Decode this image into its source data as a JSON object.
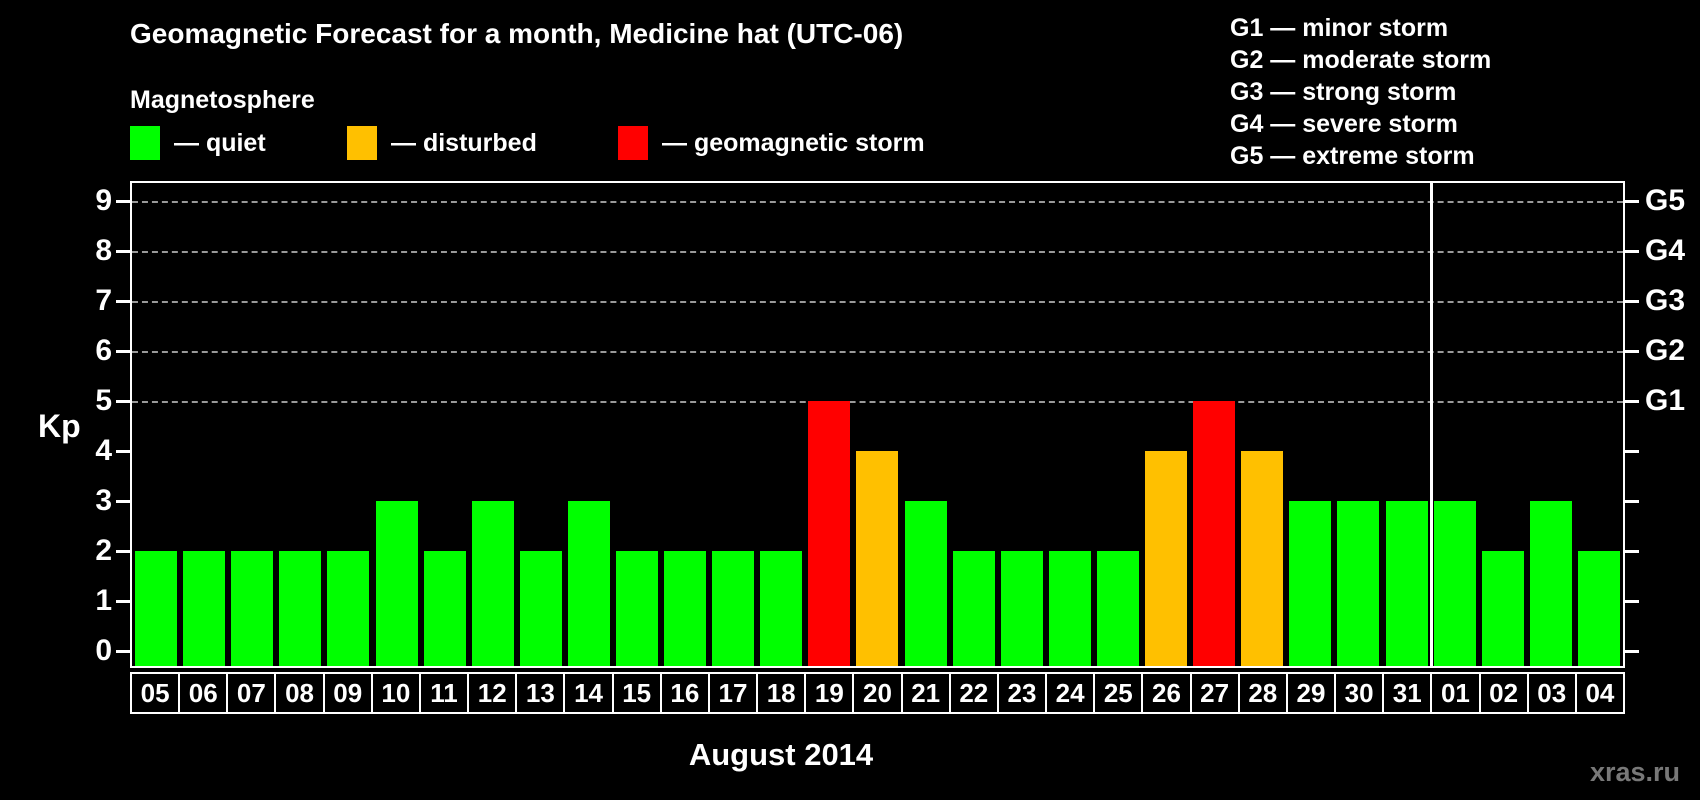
{
  "legend": {
    "heading": "Magnetosphere",
    "items": [
      {
        "status": "quiet",
        "label": "— quiet",
        "color": "#00ff00"
      },
      {
        "status": "disturbed",
        "label": "— disturbed",
        "color": "#ffc000"
      },
      {
        "status": "storm",
        "label": "— geomagnetic storm",
        "color": "#ff0000"
      }
    ]
  },
  "storm_scale": [
    "G1 — minor storm",
    "G2 — moderate storm",
    "G3 — strong storm",
    "G4 — severe storm",
    "G5 — extreme storm"
  ],
  "watermark": "xras.ru",
  "chart_data": {
    "type": "bar",
    "title": "Geomagnetic Forecast for a month, Medicine hat (UTC-06)",
    "ylabel": "Kp",
    "xlabel": "August 2014",
    "ylim": [
      0,
      9
    ],
    "yticks": [
      0,
      1,
      2,
      3,
      4,
      5,
      6,
      7,
      8,
      9
    ],
    "categories": [
      "05",
      "06",
      "07",
      "08",
      "09",
      "10",
      "11",
      "12",
      "13",
      "14",
      "15",
      "16",
      "17",
      "18",
      "19",
      "20",
      "21",
      "22",
      "23",
      "24",
      "25",
      "26",
      "27",
      "28",
      "29",
      "30",
      "31",
      "01",
      "02",
      "03",
      "04"
    ],
    "values": [
      2,
      2,
      2,
      2,
      2,
      3,
      2,
      3,
      2,
      3,
      2,
      2,
      2,
      2,
      5,
      4,
      3,
      2,
      2,
      2,
      2,
      4,
      5,
      4,
      3,
      3,
      3,
      3,
      2,
      3,
      2
    ],
    "statuses": [
      "quiet",
      "quiet",
      "quiet",
      "quiet",
      "quiet",
      "quiet",
      "quiet",
      "quiet",
      "quiet",
      "quiet",
      "quiet",
      "quiet",
      "quiet",
      "quiet",
      "storm",
      "disturbed",
      "quiet",
      "quiet",
      "quiet",
      "quiet",
      "quiet",
      "disturbed",
      "storm",
      "disturbed",
      "quiet",
      "quiet",
      "quiet",
      "quiet",
      "quiet",
      "quiet",
      "quiet"
    ],
    "status_colors": {
      "quiet": "#00ff00",
      "disturbed": "#ffc000",
      "storm": "#ff0000"
    },
    "right_axis": [
      {
        "kp": 5,
        "label": "G1"
      },
      {
        "kp": 6,
        "label": "G2"
      },
      {
        "kp": 7,
        "label": "G3"
      },
      {
        "kp": 8,
        "label": "G4"
      },
      {
        "kp": 9,
        "label": "G5"
      }
    ],
    "gridlines_at": [
      5,
      6,
      7,
      8,
      9
    ],
    "month_boundary_after_index": 26,
    "grid": "dashed horizontal lines at Kp 5-9",
    "legend_position": "top-left"
  }
}
